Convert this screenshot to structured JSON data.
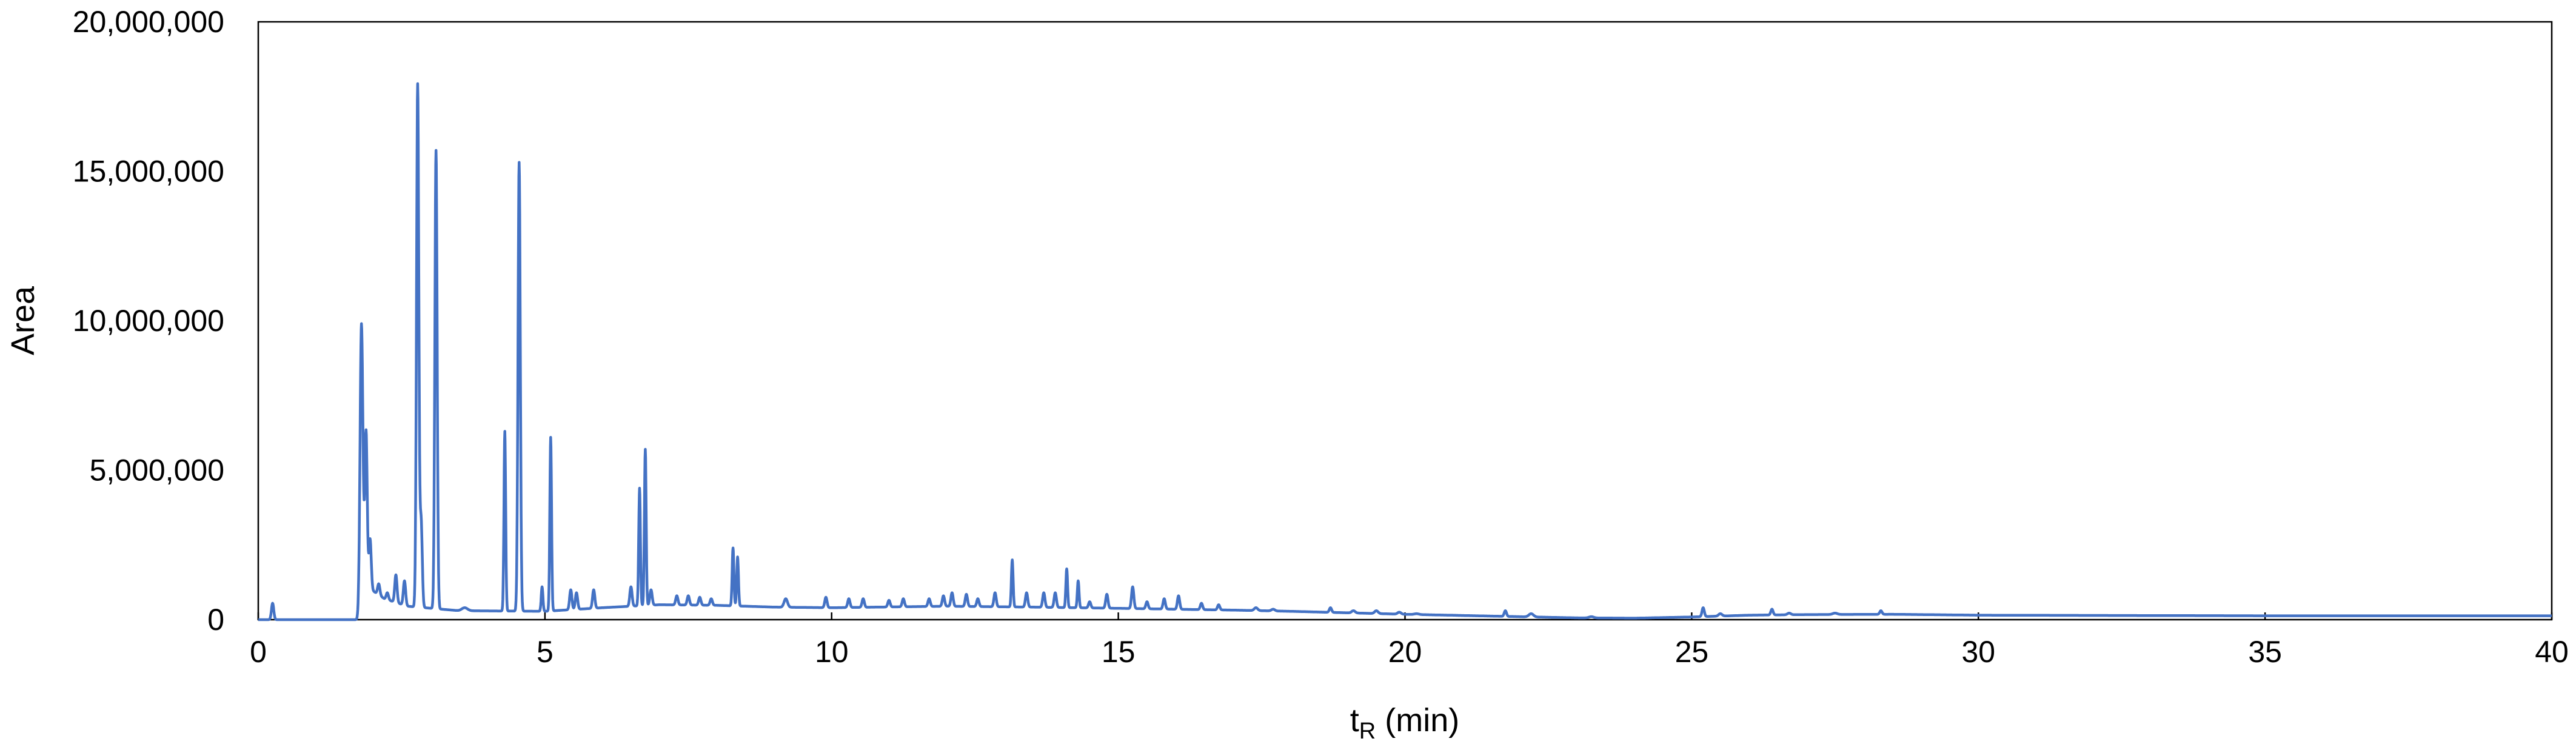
{
  "chart_data": {
    "type": "line",
    "title": "",
    "xlabel": "t",
    "xlabel_subscript": "R",
    "xlabel_unit": " (min)",
    "ylabel": "Area",
    "xlim": [
      0,
      40
    ],
    "ylim": [
      0,
      20000000
    ],
    "x_ticks": [
      0,
      5,
      10,
      15,
      20,
      25,
      30,
      35,
      40
    ],
    "x_tick_labels": [
      "0",
      "5",
      "10",
      "15",
      "20",
      "25",
      "30",
      "35",
      "40"
    ],
    "y_ticks": [
      0,
      5000000,
      10000000,
      15000000,
      20000000
    ],
    "y_tick_labels": [
      "0",
      "5,000,000",
      "10,000,000",
      "15,000,000",
      "20,000,000"
    ],
    "grid": false,
    "legend": "none",
    "series_color": "#4472C4",
    "baseline": [
      [
        0.0,
        0
      ],
      [
        1.78,
        0
      ],
      [
        1.82,
        1200000
      ],
      [
        2.2,
        700000
      ],
      [
        2.6,
        450000
      ],
      [
        3.5,
        300000
      ],
      [
        5.0,
        280000
      ],
      [
        6.0,
        400000
      ],
      [
        7.0,
        500000
      ],
      [
        8.0,
        480000
      ],
      [
        9.0,
        420000
      ],
      [
        10.0,
        400000
      ],
      [
        12.0,
        450000
      ],
      [
        13.5,
        420000
      ],
      [
        15.0,
        380000
      ],
      [
        16.0,
        350000
      ],
      [
        17.0,
        320000
      ],
      [
        18.0,
        280000
      ],
      [
        20.0,
        180000
      ],
      [
        21.5,
        120000
      ],
      [
        23.0,
        60000
      ],
      [
        24.0,
        50000
      ],
      [
        25.0,
        90000
      ],
      [
        26.0,
        150000
      ],
      [
        27.0,
        170000
      ],
      [
        28.5,
        180000
      ],
      [
        30.0,
        150000
      ],
      [
        35.0,
        130000
      ],
      [
        40.0,
        130000
      ]
    ],
    "peaks": [
      [
        0.25,
        550000,
        0.02
      ],
      [
        1.8,
        9900000,
        0.025
      ],
      [
        1.88,
        6300000,
        0.02
      ],
      [
        1.95,
        2700000,
        0.02
      ],
      [
        2.1,
        1200000,
        0.02
      ],
      [
        2.25,
        900000,
        0.02
      ],
      [
        2.4,
        1500000,
        0.02
      ],
      [
        2.55,
        1300000,
        0.02
      ],
      [
        2.78,
        17900000,
        0.02
      ],
      [
        2.84,
        3300000,
        0.02
      ],
      [
        3.1,
        15700000,
        0.02
      ],
      [
        3.6,
        400000,
        0.05
      ],
      [
        4.3,
        6300000,
        0.015
      ],
      [
        4.55,
        15300000,
        0.02
      ],
      [
        4.95,
        1100000,
        0.015
      ],
      [
        5.1,
        6100000,
        0.015
      ],
      [
        5.45,
        1000000,
        0.02
      ],
      [
        5.55,
        900000,
        0.02
      ],
      [
        5.85,
        1000000,
        0.02
      ],
      [
        6.5,
        1100000,
        0.02
      ],
      [
        6.65,
        4400000,
        0.015
      ],
      [
        6.75,
        5700000,
        0.015
      ],
      [
        6.85,
        1000000,
        0.02
      ],
      [
        7.3,
        800000,
        0.02
      ],
      [
        7.5,
        800000,
        0.02
      ],
      [
        7.7,
        750000,
        0.02
      ],
      [
        7.9,
        700000,
        0.02
      ],
      [
        8.28,
        2400000,
        0.015
      ],
      [
        8.36,
        2100000,
        0.015
      ],
      [
        9.2,
        700000,
        0.03
      ],
      [
        9.9,
        750000,
        0.02
      ],
      [
        10.3,
        700000,
        0.02
      ],
      [
        10.55,
        700000,
        0.02
      ],
      [
        11.0,
        650000,
        0.02
      ],
      [
        11.25,
        700000,
        0.02
      ],
      [
        11.7,
        700000,
        0.02
      ],
      [
        11.95,
        800000,
        0.02
      ],
      [
        12.1,
        900000,
        0.02
      ],
      [
        12.35,
        850000,
        0.02
      ],
      [
        12.55,
        700000,
        0.02
      ],
      [
        12.85,
        900000,
        0.02
      ],
      [
        13.15,
        2000000,
        0.015
      ],
      [
        13.4,
        900000,
        0.02
      ],
      [
        13.7,
        900000,
        0.02
      ],
      [
        13.9,
        900000,
        0.02
      ],
      [
        14.1,
        1700000,
        0.015
      ],
      [
        14.3,
        1300000,
        0.015
      ],
      [
        14.5,
        600000,
        0.02
      ],
      [
        14.8,
        850000,
        0.02
      ],
      [
        15.25,
        1100000,
        0.02
      ],
      [
        15.5,
        600000,
        0.02
      ],
      [
        15.8,
        700000,
        0.02
      ],
      [
        16.05,
        800000,
        0.02
      ],
      [
        16.45,
        550000,
        0.02
      ],
      [
        16.75,
        500000,
        0.02
      ],
      [
        17.4,
        400000,
        0.03
      ],
      [
        17.7,
        350000,
        0.03
      ],
      [
        18.7,
        400000,
        0.02
      ],
      [
        19.1,
        300000,
        0.03
      ],
      [
        19.5,
        300000,
        0.03
      ],
      [
        19.9,
        250000,
        0.03
      ],
      [
        20.2,
        200000,
        0.04
      ],
      [
        20.8,
        150000,
        0.04
      ],
      [
        21.75,
        300000,
        0.02
      ],
      [
        22.2,
        200000,
        0.04
      ],
      [
        23.25,
        100000,
        0.04
      ],
      [
        25.2,
        400000,
        0.02
      ],
      [
        25.5,
        200000,
        0.03
      ],
      [
        26.4,
        350000,
        0.02
      ],
      [
        26.7,
        220000,
        0.03
      ],
      [
        27.5,
        220000,
        0.04
      ],
      [
        28.3,
        300000,
        0.02
      ]
    ]
  }
}
